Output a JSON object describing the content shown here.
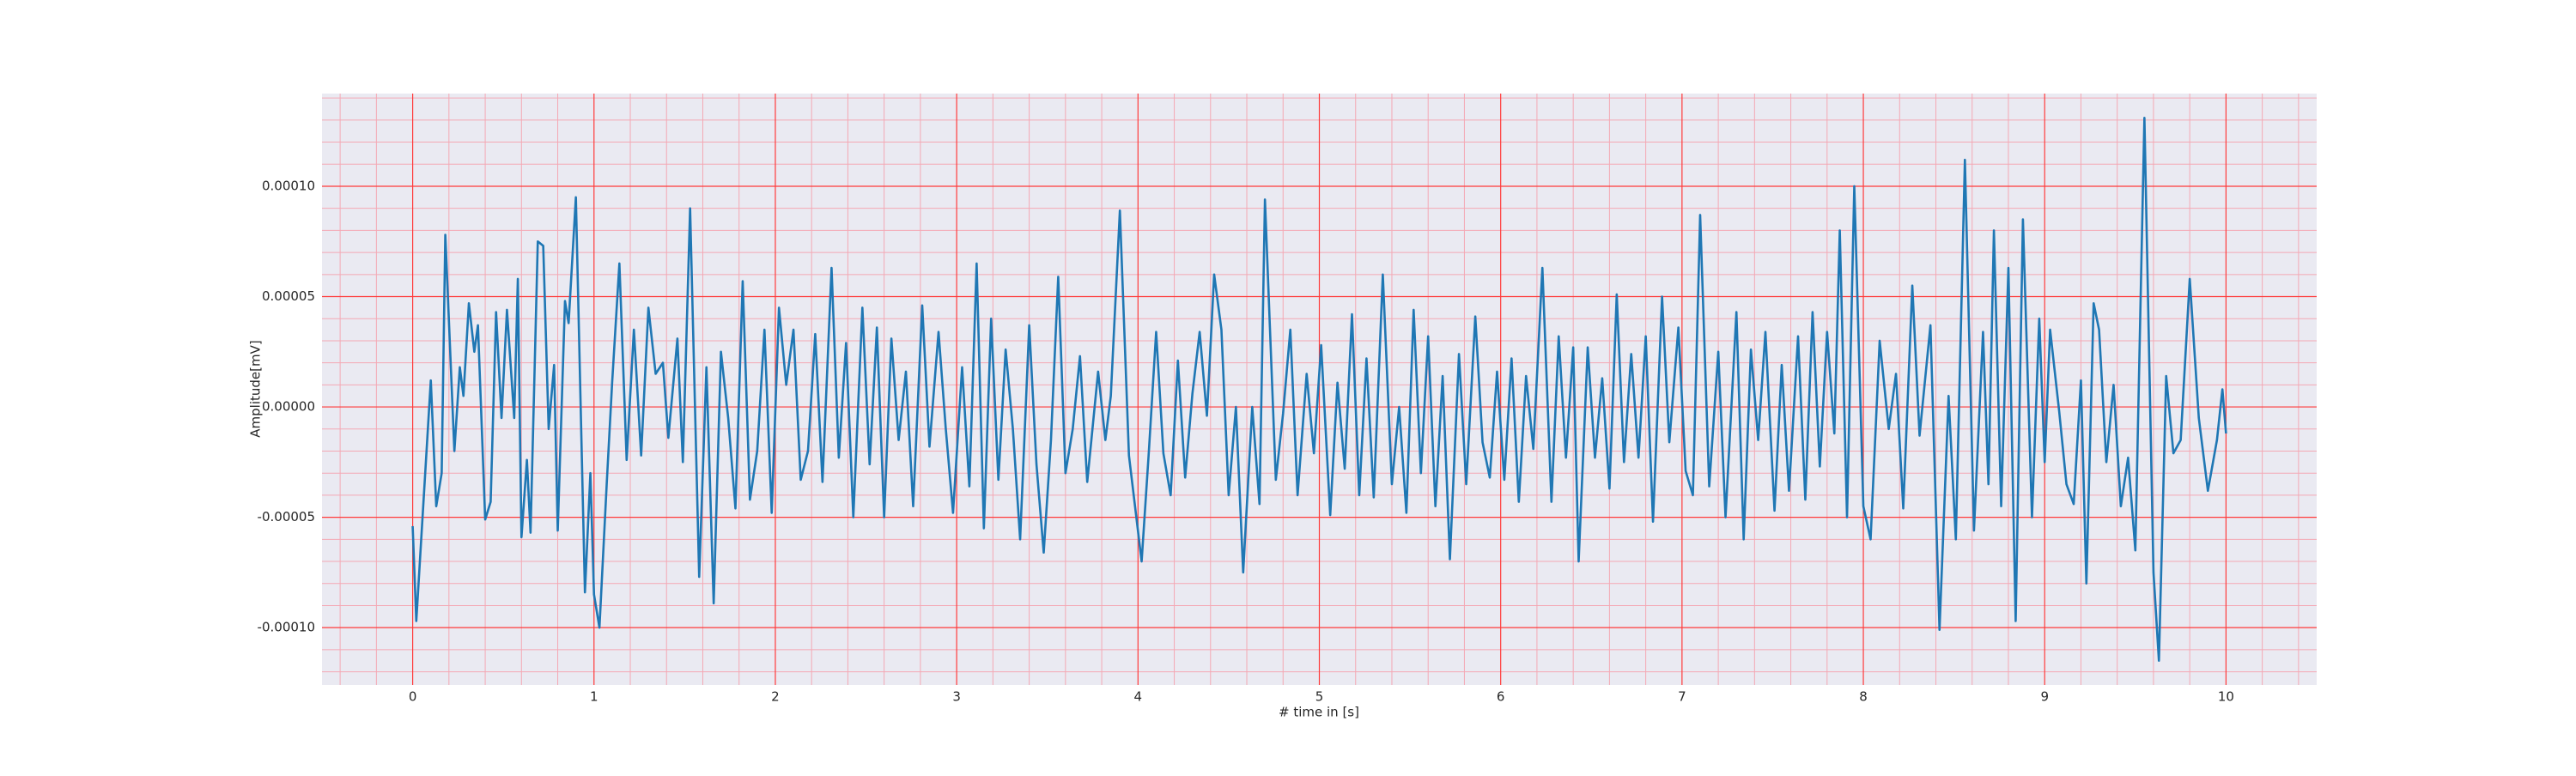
{
  "chart_data": {
    "type": "line",
    "x_label": "# time in [s]",
    "y_label": "Amplitude[mV]",
    "x": [
      0,
      0.02,
      0.1,
      0.13,
      0.16,
      0.18,
      0.23,
      0.26,
      0.28,
      0.31,
      0.34,
      0.36,
      0.4,
      0.43,
      0.46,
      0.49,
      0.52,
      0.56,
      0.58,
      0.6,
      0.63,
      0.65,
      0.69,
      0.72,
      0.75,
      0.78,
      0.8,
      0.84,
      0.86,
      0.9,
      0.95,
      0.98,
      1.0,
      1.03,
      1.07,
      1.1,
      1.14,
      1.18,
      1.22,
      1.26,
      1.3,
      1.34,
      1.38,
      1.41,
      1.46,
      1.49,
      1.53,
      1.58,
      1.62,
      1.66,
      1.7,
      1.74,
      1.78,
      1.82,
      1.86,
      1.9,
      1.94,
      1.98,
      2.02,
      2.06,
      2.1,
      2.14,
      2.18,
      2.22,
      2.26,
      2.31,
      2.35,
      2.39,
      2.43,
      2.48,
      2.52,
      2.56,
      2.6,
      2.64,
      2.68,
      2.72,
      2.76,
      2.81,
      2.85,
      2.9,
      2.94,
      2.98,
      3.03,
      3.07,
      3.11,
      3.15,
      3.19,
      3.23,
      3.27,
      3.31,
      3.35,
      3.4,
      3.44,
      3.48,
      3.52,
      3.56,
      3.6,
      3.64,
      3.68,
      3.72,
      3.78,
      3.82,
      3.85,
      3.9,
      3.95,
      4.02,
      4.06,
      4.1,
      4.14,
      4.18,
      4.22,
      4.26,
      4.3,
      4.34,
      4.38,
      4.42,
      4.46,
      4.5,
      4.54,
      4.58,
      4.63,
      4.67,
      4.7,
      4.76,
      4.8,
      4.84,
      4.88,
      4.93,
      4.97,
      5.01,
      5.06,
      5.1,
      5.14,
      5.18,
      5.22,
      5.26,
      5.3,
      5.35,
      5.4,
      5.44,
      5.48,
      5.52,
      5.56,
      5.6,
      5.64,
      5.68,
      5.72,
      5.77,
      5.81,
      5.86,
      5.9,
      5.94,
      5.98,
      6.02,
      6.06,
      6.1,
      6.14,
      6.18,
      6.23,
      6.28,
      6.32,
      6.36,
      6.4,
      6.43,
      6.48,
      6.52,
      6.56,
      6.6,
      6.64,
      6.68,
      6.72,
      6.76,
      6.8,
      6.84,
      6.89,
      6.93,
      6.98,
      7.02,
      7.06,
      7.1,
      7.15,
      7.2,
      7.24,
      7.3,
      7.34,
      7.38,
      7.42,
      7.46,
      7.51,
      7.55,
      7.59,
      7.64,
      7.68,
      7.72,
      7.76,
      7.8,
      7.84,
      7.87,
      7.91,
      7.95,
      8.0,
      8.04,
      8.09,
      8.14,
      8.18,
      8.22,
      8.27,
      8.31,
      8.37,
      8.42,
      8.47,
      8.51,
      8.56,
      8.61,
      8.66,
      8.69,
      8.72,
      8.76,
      8.8,
      8.84,
      8.88,
      8.93,
      8.97,
      9.0,
      9.03,
      9.08,
      9.12,
      9.16,
      9.2,
      9.23,
      9.27,
      9.3,
      9.34,
      9.38,
      9.42,
      9.46,
      9.5,
      9.55,
      9.6,
      9.63,
      9.67,
      9.71,
      9.75,
      9.8,
      9.85,
      9.9,
      9.95,
      9.98,
      10.0
    ],
    "series": [
      {
        "color": "#1f77b4",
        "values": [
          -5.4e-05,
          -9.7e-05,
          1.2e-05,
          -4.5e-05,
          -3e-05,
          7.8e-05,
          -2e-05,
          1.8e-05,
          5e-06,
          4.7e-05,
          2.5e-05,
          3.7e-05,
          -5.1e-05,
          -4.3e-05,
          4.3e-05,
          -5e-06,
          4.4e-05,
          -5e-06,
          5.8e-05,
          -5.9e-05,
          -2.4e-05,
          -5.7e-05,
          7.5e-05,
          7.3e-05,
          -1e-05,
          1.9e-05,
          -5.6e-05,
          4.8e-05,
          3.8e-05,
          9.5e-05,
          -8.4e-05,
          -3e-05,
          -8.5e-05,
          -0.0001,
          -3.5e-05,
          1.1e-05,
          6.5e-05,
          -2.4e-05,
          3.5e-05,
          -2.2e-05,
          4.5e-05,
          1.5e-05,
          2e-05,
          -1.4e-05,
          3.1e-05,
          -2.5e-05,
          9e-05,
          -7.7e-05,
          1.8e-05,
          -8.9e-05,
          2.5e-05,
          -5e-06,
          -4.6e-05,
          5.7e-05,
          -4.2e-05,
          -2e-05,
          3.5e-05,
          -4.8e-05,
          4.5e-05,
          1e-05,
          3.5e-05,
          -3.3e-05,
          -2e-05,
          3.3e-05,
          -3.4e-05,
          6.3e-05,
          -2.3e-05,
          2.9e-05,
          -5e-05,
          4.5e-05,
          -2.6e-05,
          3.6e-05,
          -5e-05,
          3.1e-05,
          -1.5e-05,
          1.6e-05,
          -4.5e-05,
          4.6e-05,
          -1.8e-05,
          3.4e-05,
          -1e-05,
          -4.8e-05,
          1.8e-05,
          -3.6e-05,
          6.5e-05,
          -5.5e-05,
          4e-05,
          -3.3e-05,
          2.6e-05,
          -1e-05,
          -6e-05,
          3.7e-05,
          -2.6e-05,
          -6.6e-05,
          -1.5e-05,
          5.9e-05,
          -3e-05,
          -1e-05,
          2.3e-05,
          -3.4e-05,
          1.6e-05,
          -1.5e-05,
          5e-06,
          8.9e-05,
          -2.2e-05,
          -7e-05,
          -2e-05,
          3.4e-05,
          -2.1e-05,
          -4e-05,
          2.1e-05,
          -3.2e-05,
          6e-06,
          3.4e-05,
          -4e-06,
          6e-05,
          3.5e-05,
          -4e-05,
          0,
          -7.5e-05,
          0,
          -4.4e-05,
          9.4e-05,
          -3.3e-05,
          -3e-06,
          3.5e-05,
          -4e-05,
          1.5e-05,
          -2.1e-05,
          2.8e-05,
          -4.9e-05,
          1.1e-05,
          -2.8e-05,
          4.2e-05,
          -4e-05,
          2.2e-05,
          -4.1e-05,
          6e-05,
          -3.5e-05,
          0,
          -4.8e-05,
          4.4e-05,
          -3e-05,
          3.2e-05,
          -4.5e-05,
          1.4e-05,
          -6.9e-05,
          2.4e-05,
          -3.5e-05,
          4.1e-05,
          -1.6e-05,
          -3.2e-05,
          1.6e-05,
          -3.3e-05,
          2.2e-05,
          -4.3e-05,
          1.4e-05,
          -1.9e-05,
          6.3e-05,
          -4.3e-05,
          3.2e-05,
          -2.3e-05,
          2.7e-05,
          -7e-05,
          2.7e-05,
          -2.3e-05,
          1.3e-05,
          -3.7e-05,
          5.1e-05,
          -2.5e-05,
          2.4e-05,
          -2.3e-05,
          3.2e-05,
          -5.2e-05,
          5e-05,
          -1.6e-05,
          3.6e-05,
          -2.9e-05,
          -4e-05,
          8.7e-05,
          -3.6e-05,
          2.5e-05,
          -5e-05,
          4.3e-05,
          -6e-05,
          2.6e-05,
          -1.5e-05,
          3.4e-05,
          -4.7e-05,
          1.9e-05,
          -3.8e-05,
          3.2e-05,
          -4.2e-05,
          4.3e-05,
          -2.7e-05,
          3.4e-05,
          -1.2e-05,
          8e-05,
          -5e-05,
          0.0001,
          -4.5e-05,
          -6e-05,
          3e-05,
          -1e-05,
          1.5e-05,
          -4.6e-05,
          5.5e-05,
          -1.3e-05,
          3.7e-05,
          -0.000101,
          5e-06,
          -6e-05,
          0.000112,
          -5.6e-05,
          3.4e-05,
          -3.5e-05,
          8e-05,
          -4.5e-05,
          6.3e-05,
          -9.7e-05,
          8.5e-05,
          -5e-05,
          4e-05,
          -2.5e-05,
          3.5e-05,
          -2e-06,
          -3.5e-05,
          -4.4e-05,
          1.2e-05,
          -8e-05,
          4.7e-05,
          3.5e-05,
          -2.5e-05,
          1e-05,
          -4.5e-05,
          -2.3e-05,
          -6.5e-05,
          0.000131,
          -7.5e-05,
          -0.000115,
          1.4e-05,
          -2.1e-05,
          -1.5e-05,
          5.8e-05,
          -5e-06,
          -3.8e-05,
          -1.5e-05,
          8e-06,
          -1.2e-05
        ]
      }
    ],
    "xlim": [
      -0.5,
      10.5
    ],
    "ylim": [
      -0.000126,
      0.000142
    ],
    "xticks": [
      0,
      1,
      2,
      3,
      4,
      5,
      6,
      7,
      8,
      9,
      10
    ],
    "yticks": [
      {
        "value": -0.0001,
        "label": "-0.00010"
      },
      {
        "value": -5e-05,
        "label": "-0.00005"
      },
      {
        "value": 0,
        "label": "0.00000"
      },
      {
        "value": 5e-05,
        "label": "0.00005"
      },
      {
        "value": 0.0001,
        "label": "0.00010"
      }
    ],
    "xminorticks": [
      -0.4,
      -0.2,
      0.2,
      0.4,
      0.6,
      0.8,
      1.2,
      1.4,
      1.6,
      1.8,
      2.2,
      2.4,
      2.6,
      2.8,
      3.2,
      3.4,
      3.6,
      3.8,
      4.2,
      4.4,
      4.6,
      4.8,
      5.2,
      5.4,
      5.6,
      5.8,
      6.2,
      6.4,
      6.6,
      6.8,
      7.2,
      7.4,
      7.6,
      7.8,
      8.2,
      8.4,
      8.6,
      8.8,
      9.2,
      9.4,
      9.6,
      9.8,
      10.2,
      10.4
    ],
    "yminorticks": [
      -0.00012,
      -0.00011,
      -9e-05,
      -8e-05,
      -7e-05,
      -6e-05,
      -4e-05,
      -3e-05,
      -2e-05,
      -1e-05,
      1e-05,
      2e-05,
      3e-05,
      4e-05,
      6e-05,
      7e-05,
      8e-05,
      9e-05,
      0.00011,
      0.00012,
      0.00013,
      0.00014
    ],
    "grid": true,
    "grid_color": "#ff3b3b",
    "minor_grid_color": "#f4a8b4",
    "background": "#eaeaf2"
  }
}
